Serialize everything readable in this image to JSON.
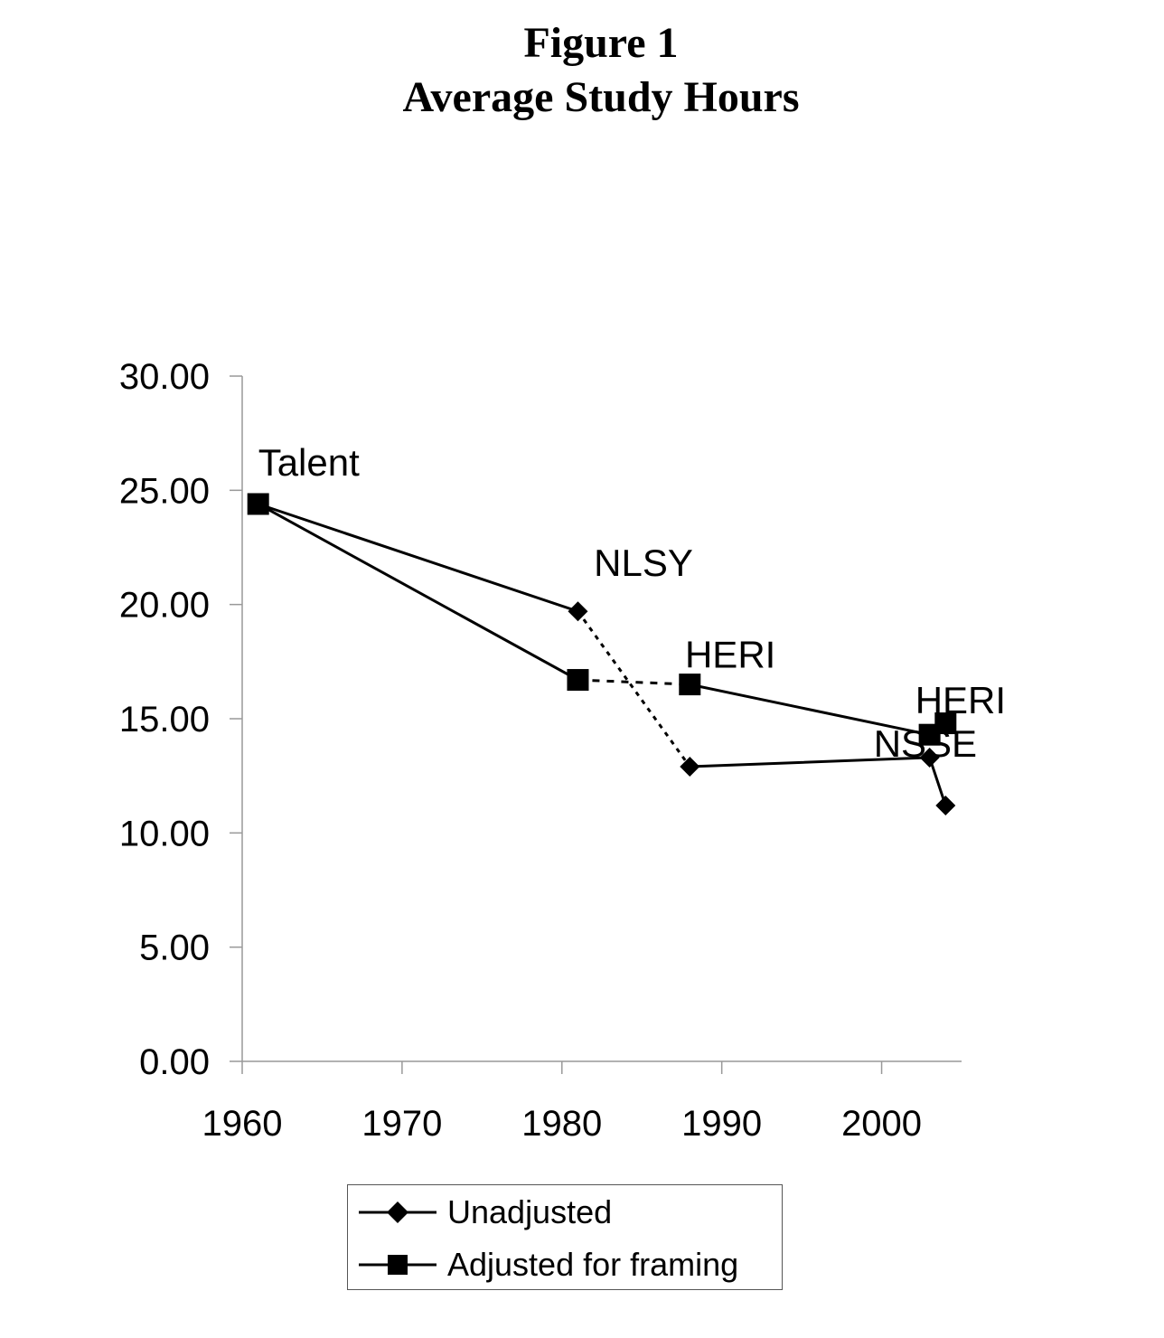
{
  "figure": {
    "title_line1": "Figure 1",
    "title_line2": "Average Study Hours"
  },
  "chart_data": {
    "type": "line",
    "title": "Average Study Hours",
    "xlabel": "",
    "ylabel": "",
    "xlim": [
      1960,
      2005
    ],
    "ylim": [
      0,
      30
    ],
    "x_ticks": [
      1960,
      1970,
      1980,
      1990,
      2000
    ],
    "y_ticks": [
      "0.00",
      "5.00",
      "10.00",
      "15.00",
      "20.00",
      "25.00",
      "30.00"
    ],
    "grid": false,
    "legend_position": "bottom",
    "series": [
      {
        "name": "Unadjusted",
        "marker": "diamond",
        "points": [
          {
            "x": 1961,
            "y": 24.4
          },
          {
            "x": 1981,
            "y": 19.7
          },
          {
            "x": 1988,
            "y": 12.9
          },
          {
            "x": 2003,
            "y": 13.3
          },
          {
            "x": 2004,
            "y": 11.2
          }
        ],
        "solid_segments": [
          [
            0,
            1
          ],
          [
            2,
            4
          ]
        ],
        "dashed_segments": [
          [
            1,
            2
          ]
        ]
      },
      {
        "name": "Adjusted for framing",
        "marker": "square",
        "points": [
          {
            "x": 1961,
            "y": 24.4
          },
          {
            "x": 1981,
            "y": 16.7
          },
          {
            "x": 1988,
            "y": 16.5
          },
          {
            "x": 2003,
            "y": 14.3
          },
          {
            "x": 2004,
            "y": 14.8
          }
        ],
        "solid_segments": [
          [
            0,
            1
          ],
          [
            2,
            4
          ]
        ],
        "dashed_segments": [
          [
            1,
            2
          ]
        ]
      }
    ],
    "annotations": [
      {
        "text": "Talent",
        "x": 1961,
        "y": 26.2
      },
      {
        "text": "NLSY",
        "x": 1982,
        "y": 21.8
      },
      {
        "text": "HERI",
        "x": 1987.7,
        "y": 17.8
      },
      {
        "text": "HERI",
        "x": 2002.1,
        "y": 15.8
      },
      {
        "text": "NSSE",
        "x": 1999.5,
        "y": 13.9
      }
    ]
  }
}
